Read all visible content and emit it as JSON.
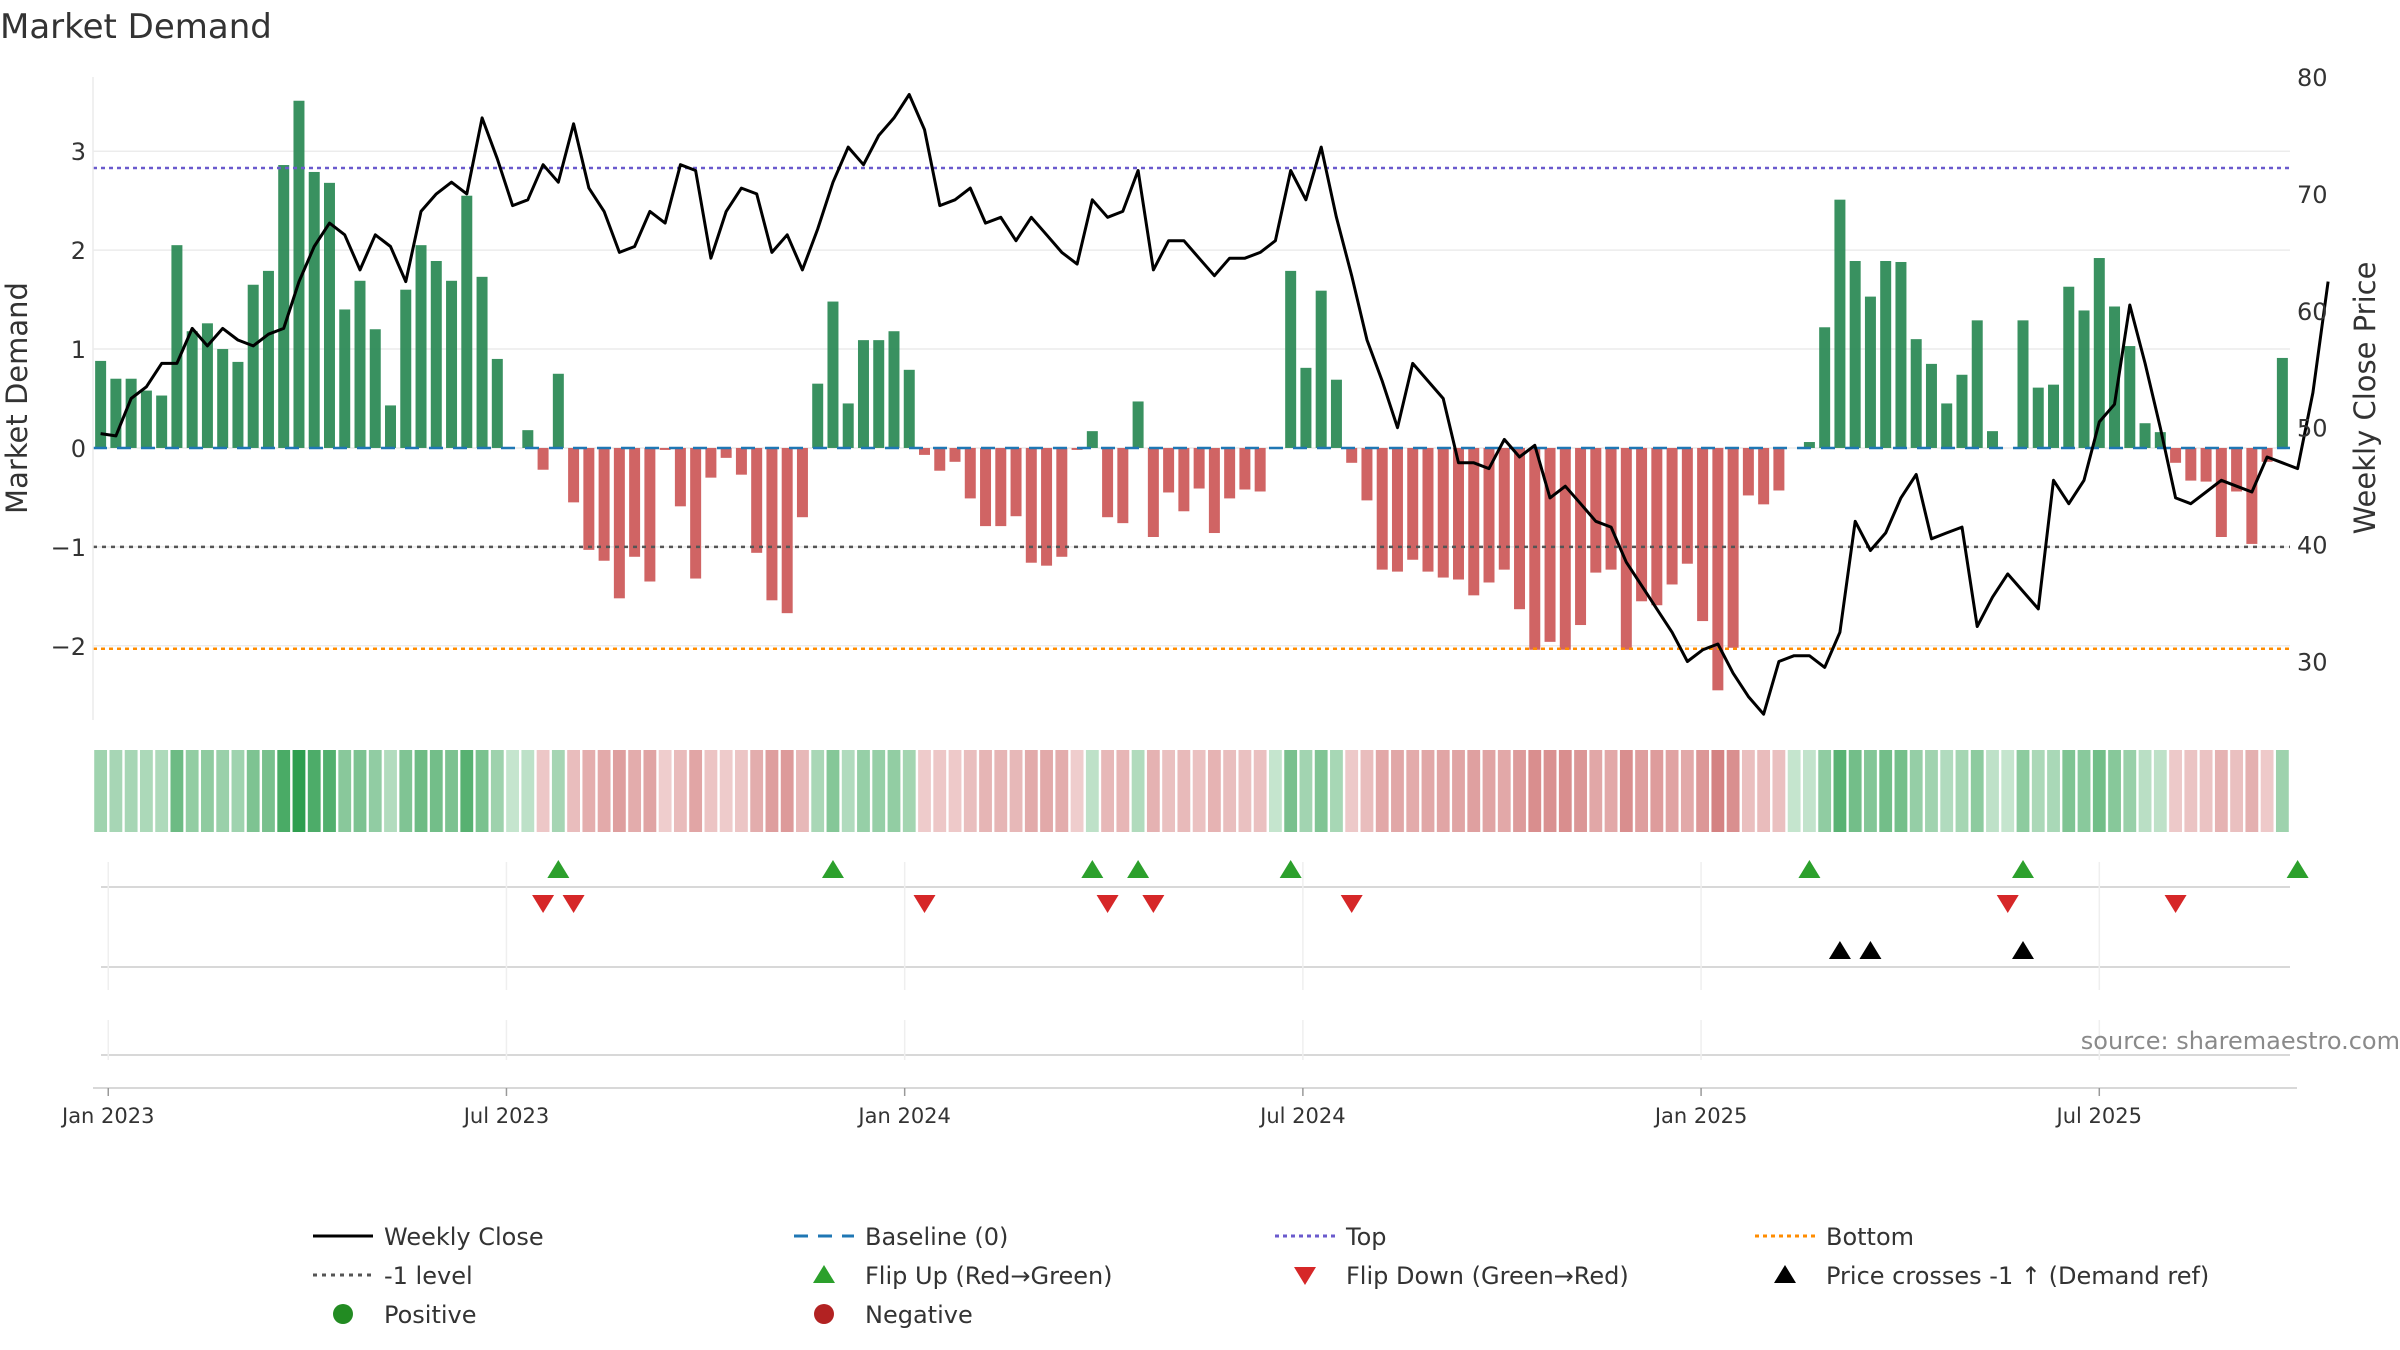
{
  "chart_data": {
    "type": "bar",
    "title": "Market Demand",
    "ylabel": "Market Demand",
    "y2label": "Weekly Close Price",
    "ylim": [
      -2.75,
      3.75
    ],
    "y2lim": [
      25,
      80
    ],
    "yticks": [
      -2,
      -1,
      0,
      1,
      2,
      3
    ],
    "ytick_labels": [
      "−2",
      "−1",
      "0",
      "1",
      "2",
      "3"
    ],
    "y2ticks": [
      30,
      40,
      50,
      60,
      70,
      80
    ],
    "y2tick_labels": [
      "30",
      "40",
      "50",
      "60",
      "70",
      "80"
    ],
    "xticks": [
      "Jan 2023",
      "Jul 2023",
      "Jan 2024",
      "Jul 2024",
      "Jan 2025",
      "Jul 2025"
    ],
    "levels": {
      "top": 2.83,
      "minus_one": -1.0,
      "bottom": -2.03,
      "baseline": 0
    },
    "demand": [
      0.88,
      0.7,
      0.7,
      0.58,
      0.53,
      2.05,
      1.18,
      1.26,
      1.0,
      0.87,
      1.65,
      1.79,
      2.86,
      3.51,
      2.79,
      2.68,
      1.4,
      1.69,
      1.2,
      0.43,
      1.6,
      2.05,
      1.89,
      1.69,
      2.55,
      1.73,
      0.9,
      0,
      0.18,
      -0.22,
      0.75,
      -0.55,
      -1.03,
      -1.14,
      -1.52,
      -1.1,
      -1.35,
      -0.02,
      -0.59,
      -1.32,
      -0.3,
      -0.1,
      -0.27,
      -1.06,
      -1.54,
      -1.67,
      -0.7,
      0.65,
      1.48,
      0.45,
      1.09,
      1.09,
      1.18,
      0.79,
      -0.07,
      -0.23,
      -0.14,
      -0.51,
      -0.79,
      -0.79,
      -0.69,
      -1.16,
      -1.19,
      -1.1,
      -0.02,
      0.17,
      -0.7,
      -0.76,
      0.47,
      -0.9,
      -0.45,
      -0.64,
      -0.41,
      -0.86,
      -0.51,
      -0.42,
      -0.44,
      0,
      1.79,
      0.81,
      1.59,
      0.69,
      -0.15,
      -0.53,
      -1.23,
      -1.25,
      -1.13,
      -1.25,
      -1.31,
      -1.33,
      -1.49,
      -1.36,
      -1.23,
      -1.63,
      -2.04,
      -1.96,
      -2.04,
      -1.79,
      -1.26,
      -1.23,
      -2.04,
      -1.55,
      -1.59,
      -1.38,
      -1.17,
      -1.75,
      -2.45,
      -2.02,
      -0.48,
      -0.57,
      -0.43,
      0,
      0.06,
      1.22,
      2.51,
      1.89,
      1.53,
      1.89,
      1.88,
      1.1,
      0.85,
      0.45,
      0.74,
      1.29,
      0.17,
      0,
      1.29,
      0.61,
      0.64,
      1.63,
      1.39,
      1.92,
      1.43,
      1.03,
      0.25,
      0.16,
      -0.15,
      -0.33,
      -0.34,
      -0.9,
      -0.44,
      -0.97,
      -0.14,
      0.91
    ],
    "price": [
      49.5,
      49.3,
      52.5,
      53.5,
      55.5,
      55.5,
      58.5,
      57,
      58.5,
      57.5,
      57,
      58,
      58.5,
      62.5,
      65.5,
      67.5,
      66.5,
      63.5,
      66.5,
      65.5,
      62.5,
      68.5,
      70,
      71,
      70,
      76.5,
      73,
      69,
      69.5,
      72.5,
      71,
      76,
      70.5,
      68.5,
      65,
      65.5,
      68.5,
      67.5,
      72.5,
      72,
      64.5,
      68.5,
      70.5,
      70,
      65,
      66.5,
      63.5,
      67,
      71,
      74,
      72.5,
      75,
      76.5,
      78.5,
      75.5,
      69,
      69.5,
      70.5,
      67.5,
      68,
      66,
      68,
      66.5,
      65,
      64,
      69.5,
      68,
      68.5,
      72,
      63.5,
      66,
      66,
      64.5,
      63,
      64.5,
      64.5,
      65,
      66,
      72,
      69.5,
      74,
      68,
      63,
      57.5,
      54,
      50,
      55.5,
      54,
      52.5,
      47,
      47,
      46.5,
      49,
      47.5,
      48.5,
      44,
      45,
      43.5,
      42,
      41.5,
      38.5,
      36.5,
      34.5,
      32.5,
      30,
      31,
      31.5,
      29,
      27,
      25.5,
      30,
      30.5,
      30.5,
      29.5,
      32.5,
      42,
      39.5,
      41,
      44,
      46,
      40.5,
      41,
      41.5,
      33,
      35.5,
      37.5,
      36,
      34.5,
      45.5,
      43.5,
      45.5,
      50.5,
      52,
      60.5,
      55.5,
      50,
      44,
      43.5,
      44.5,
      45.5,
      45,
      44.5,
      47.5,
      47,
      46.5,
      53,
      62.5
    ],
    "flip_up": [
      30,
      48,
      65,
      68,
      78,
      112,
      126,
      144
    ],
    "flip_down": [
      29,
      31,
      54,
      66,
      69,
      82,
      125,
      136
    ],
    "price_cross": [
      114,
      116,
      126
    ],
    "legend": [
      "Weekly Close",
      "Baseline (0)",
      "Top",
      "Bottom",
      "-1 level",
      "Flip Up (Red→Green)",
      "Flip Down (Green→Red)",
      "Price crosses -1 ↑ (Demand ref)",
      "Positive",
      "Negative"
    ],
    "source": "source: sharemaestro.com",
    "colors": {
      "positive": "#2e8b57",
      "negative": "#cd5c5c",
      "price": "#000000",
      "baseline": "#1f77b4",
      "top": "#6a5acd",
      "bottom": "#ff8c00",
      "minus_one": "#555555",
      "flip_up": "#2ca02c",
      "flip_down": "#d62728",
      "cross": "#000000",
      "legend_positive": "#228b22",
      "legend_negative": "#b22222"
    }
  }
}
